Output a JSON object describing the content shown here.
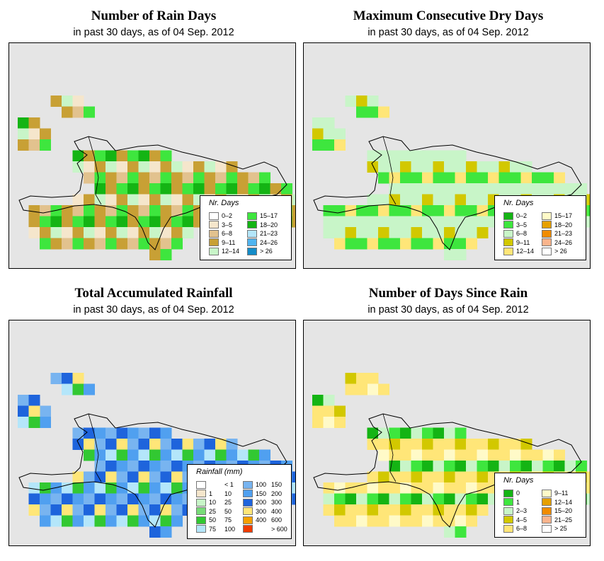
{
  "panels": [
    {
      "id": "rain_days",
      "title": "Number of Rain Days",
      "subtitle": "in past 30 days, as of  04 Sep. 2012",
      "legend_title": "Nr. Days",
      "legend": [
        {
          "label": "0–2",
          "color": "#ffffff"
        },
        {
          "label": "3–5",
          "color": "#f5e6cc"
        },
        {
          "label": "6–8",
          "color": "#e2c28e"
        },
        {
          "label": "9–11",
          "color": "#c8a035"
        },
        {
          "label": "12–14",
          "color": "#c8f5c8"
        },
        {
          "label": "15–17",
          "color": "#3ee63e"
        },
        {
          "label": "18–20",
          "color": "#14b414"
        },
        {
          "label": "21–23",
          "color": "#b4e6fa"
        },
        {
          "label": "24–26",
          "color": "#50b4f0"
        },
        {
          "label": "> 26",
          "color": "#148cc8"
        }
      ]
    },
    {
      "id": "max_dry_days",
      "title": "Maximum Consecutive Dry Days",
      "subtitle": "in past 30 days, as of  04 Sep. 2012",
      "legend_title": "Nr. Days",
      "legend": [
        {
          "label": "0–2",
          "color": "#14b414"
        },
        {
          "label": "3–5",
          "color": "#3ee63e"
        },
        {
          "label": "6–8",
          "color": "#c8f5c8"
        },
        {
          "label": "9–11",
          "color": "#d2c800"
        },
        {
          "label": "12–14",
          "color": "#ffe678"
        },
        {
          "label": "15–17",
          "color": "#fffac8"
        },
        {
          "label": "18–20",
          "color": "#e6a000"
        },
        {
          "label": "21–23",
          "color": "#f08c00"
        },
        {
          "label": "24–26",
          "color": "#fab48c"
        },
        {
          "label": "> 26",
          "color": "#ffffff"
        }
      ]
    },
    {
      "id": "total_rainfall",
      "title": "Total Accumulated Rainfall",
      "subtitle": "in past 30 days, as of  04 Sep. 2012",
      "legend_title": "Rainfall (mm)",
      "legend": [
        {
          "lo": "",
          "hi": "< 1",
          "color": "#ffffff"
        },
        {
          "lo": "1",
          "hi": "10",
          "color": "#f5e6cc"
        },
        {
          "lo": "10",
          "hi": "25",
          "color": "#c8f5c8"
        },
        {
          "lo": "25",
          "hi": "50",
          "color": "#78dc78"
        },
        {
          "lo": "50",
          "hi": "75",
          "color": "#32c832"
        },
        {
          "lo": "75",
          "hi": "100",
          "color": "#b4e6fa"
        },
        {
          "lo": "100",
          "hi": "150",
          "color": "#78b4f0"
        },
        {
          "lo": "150",
          "hi": "200",
          "color": "#50a0f0"
        },
        {
          "lo": "200",
          "hi": "300",
          "color": "#1e64dc"
        },
        {
          "lo": "300",
          "hi": "400",
          "color": "#ffe678"
        },
        {
          "lo": "400",
          "hi": "600",
          "color": "#f5a000"
        },
        {
          "lo": "",
          "hi": "> 600",
          "color": "#f03c00"
        }
      ]
    },
    {
      "id": "days_since_rain",
      "title": "Number of Days Since Rain",
      "subtitle": "in past 30 days, as of  04 Sep. 2012",
      "legend_title": "Nr. Days",
      "legend": [
        {
          "label": "0",
          "color": "#14b414"
        },
        {
          "label": "1",
          "color": "#3ee63e"
        },
        {
          "label": "2–3",
          "color": "#c8f5c8"
        },
        {
          "label": "4–5",
          "color": "#d2c800"
        },
        {
          "label": "6–8",
          "color": "#ffe678"
        },
        {
          "label": "9–11",
          "color": "#fffac8"
        },
        {
          "label": "12–14",
          "color": "#e6a000"
        },
        {
          "label": "15–20",
          "color": "#f08c00"
        },
        {
          "label": "21–25",
          "color": "#fab48c"
        },
        {
          "label": "> 25",
          "color": "#ffffff"
        }
      ]
    }
  ]
}
